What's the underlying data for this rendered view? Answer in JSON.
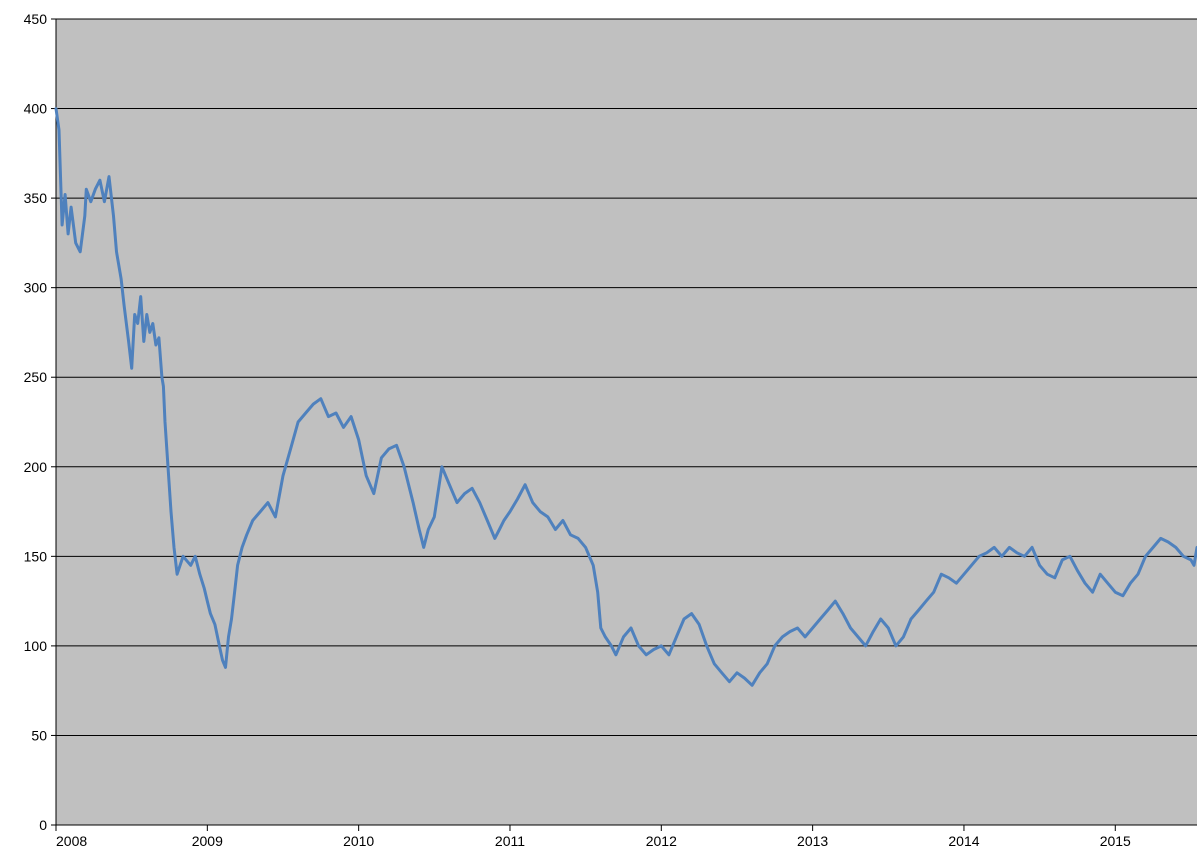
{
  "chart_data": {
    "type": "line",
    "title": "",
    "xlabel": "",
    "ylabel": "",
    "grid": true,
    "legend": "none",
    "xlim": [
      2008.0,
      2015.54
    ],
    "ylim": [
      0,
      450
    ],
    "x_ticks": [
      "2008",
      "2009",
      "2010",
      "2011",
      "2012",
      "2013",
      "2014",
      "2015"
    ],
    "y_ticks": [
      "0",
      "50",
      "100",
      "150",
      "200",
      "250",
      "300",
      "350",
      "400",
      "450"
    ],
    "colors": {
      "plot_background": "#c0c0c0",
      "gridline": "#000000",
      "line": "#4f81bd"
    },
    "series": [
      {
        "x": [
          2008.0,
          2008.02,
          2008.04,
          2008.06,
          2008.08,
          2008.1,
          2008.13,
          2008.16,
          2008.19,
          2008.2,
          2008.23,
          2008.26,
          2008.29,
          2008.32,
          2008.35,
          2008.38,
          2008.4,
          2008.43,
          2008.45,
          2008.48,
          2008.5,
          2008.52,
          2008.54,
          2008.56,
          2008.58,
          2008.6,
          2008.62,
          2008.64,
          2008.66,
          2008.68,
          2008.7,
          2008.71,
          2008.72,
          2008.74,
          2008.76,
          2008.78,
          2008.8,
          2008.82,
          2008.84,
          2008.86,
          2008.89,
          2008.92,
          2008.95,
          2008.98,
          2009.0,
          2009.02,
          2009.05,
          2009.08,
          2009.1,
          2009.12,
          2009.14,
          2009.16,
          2009.18,
          2009.2,
          2009.23,
          2009.26,
          2009.3,
          2009.35,
          2009.4,
          2009.45,
          2009.5,
          2009.55,
          2009.6,
          2009.65,
          2009.7,
          2009.75,
          2009.8,
          2009.85,
          2009.9,
          2009.95,
          2010.0,
          2010.05,
          2010.1,
          2010.15,
          2010.2,
          2010.25,
          2010.3,
          2010.33,
          2010.36,
          2010.4,
          2010.43,
          2010.46,
          2010.5,
          2010.55,
          2010.6,
          2010.65,
          2010.7,
          2010.75,
          2010.8,
          2010.85,
          2010.9,
          2010.93,
          2010.96,
          2011.0,
          2011.05,
          2011.1,
          2011.15,
          2011.2,
          2011.25,
          2011.3,
          2011.35,
          2011.4,
          2011.45,
          2011.5,
          2011.55,
          2011.58,
          2011.6,
          2011.63,
          2011.67,
          2011.7,
          2011.75,
          2011.8,
          2011.85,
          2011.9,
          2011.95,
          2012.0,
          2012.05,
          2012.1,
          2012.15,
          2012.2,
          2012.25,
          2012.3,
          2012.35,
          2012.4,
          2012.45,
          2012.5,
          2012.55,
          2012.6,
          2012.65,
          2012.7,
          2012.75,
          2012.8,
          2012.85,
          2012.9,
          2012.95,
          2013.0,
          2013.05,
          2013.1,
          2013.15,
          2013.2,
          2013.25,
          2013.3,
          2013.35,
          2013.4,
          2013.45,
          2013.5,
          2013.55,
          2013.6,
          2013.65,
          2013.7,
          2013.75,
          2013.8,
          2013.85,
          2013.9,
          2013.95,
          2014.0,
          2014.05,
          2014.1,
          2014.15,
          2014.2,
          2014.25,
          2014.3,
          2014.35,
          2014.4,
          2014.45,
          2014.5,
          2014.55,
          2014.6,
          2014.65,
          2014.7,
          2014.75,
          2014.8,
          2014.85,
          2014.9,
          2014.95,
          2015.0,
          2015.05,
          2015.1,
          2015.15,
          2015.2,
          2015.25,
          2015.3,
          2015.35,
          2015.4,
          2015.45,
          2015.5,
          2015.52,
          2015.54
        ],
        "values": [
          400,
          388,
          335,
          352,
          330,
          345,
          325,
          320,
          340,
          355,
          348,
          355,
          360,
          348,
          362,
          340,
          320,
          305,
          290,
          270,
          255,
          285,
          280,
          295,
          270,
          285,
          275,
          280,
          268,
          272,
          250,
          245,
          225,
          200,
          175,
          155,
          140,
          145,
          150,
          148,
          145,
          150,
          140,
          132,
          125,
          118,
          112,
          100,
          92,
          88,
          105,
          115,
          130,
          145,
          155,
          162,
          170,
          175,
          180,
          172,
          195,
          210,
          225,
          230,
          235,
          238,
          228,
          230,
          222,
          228,
          215,
          195,
          185,
          205,
          210,
          212,
          200,
          190,
          180,
          165,
          155,
          165,
          172,
          200,
          190,
          180,
          185,
          188,
          180,
          170,
          160,
          165,
          170,
          175,
          182,
          190,
          180,
          175,
          172,
          165,
          170,
          162,
          160,
          155,
          145,
          130,
          110,
          105,
          100,
          95,
          105,
          110,
          100,
          95,
          98,
          100,
          95,
          105,
          115,
          118,
          112,
          100,
          90,
          85,
          80,
          85,
          82,
          78,
          85,
          90,
          100,
          105,
          108,
          110,
          105,
          110,
          115,
          120,
          125,
          118,
          110,
          105,
          100,
          108,
          115,
          110,
          100,
          105,
          115,
          120,
          125,
          130,
          140,
          138,
          135,
          140,
          145,
          150,
          152,
          155,
          150,
          155,
          152,
          150,
          155,
          145,
          140,
          138,
          148,
          150,
          142,
          135,
          130,
          140,
          135,
          130,
          128,
          135,
          140,
          150,
          155,
          160,
          158,
          155,
          150,
          148,
          145,
          155
        ]
      }
    ]
  }
}
